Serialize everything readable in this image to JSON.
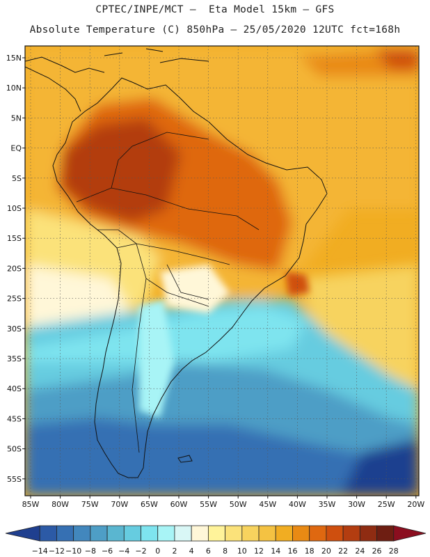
{
  "header": {
    "line1": "CPTEC/INPE/MCT –  Eta Model 15km – GFS",
    "line2": "Absolute Temperature (C) 850hPa – 25/05/2020 12UTC fct=168h"
  },
  "axes": {
    "lat_labels": [
      "15N",
      "10N",
      "5N",
      "EQ",
      "5S",
      "10S",
      "15S",
      "20S",
      "25S",
      "30S",
      "35S",
      "40S",
      "45S",
      "50S",
      "55S"
    ],
    "lon_labels": [
      "85W",
      "80W",
      "75W",
      "70W",
      "65W",
      "60W",
      "55W",
      "50W",
      "45W",
      "40W",
      "35W",
      "30W",
      "25W",
      "20W"
    ]
  },
  "colorbar": {
    "labels": [
      "-14",
      "-12",
      "-10",
      "-8",
      "-6",
      "-4",
      "-2",
      "0",
      "2",
      "4",
      "6",
      "8",
      "10",
      "12",
      "14",
      "16",
      "18",
      "20",
      "22",
      "24",
      "26",
      "28"
    ],
    "colors": [
      "#1f3f8f",
      "#2c5aa6",
      "#3670b3",
      "#4287bd",
      "#4e9ec6",
      "#5ab6d0",
      "#66cce0",
      "#7ee4ef",
      "#a8f4f6",
      "#d9f7f6",
      "#fff7d8",
      "#fff39a",
      "#fbe27a",
      "#f7d35e",
      "#f4c242",
      "#f1ad22",
      "#e98a14",
      "#df6810",
      "#cf4f0e",
      "#b33d10",
      "#8f2c12",
      "#6e1e12",
      "#8b0e1f"
    ]
  },
  "chart_data": {
    "type": "heatmap",
    "title": "Absolute Temperature (C) 850hPa",
    "source": "CPTEC/INPE/MCT – Eta Model 15km – GFS",
    "valid": "25/05/2020 12UTC fct=168h",
    "variable": "temperature_850hPa_C",
    "x_range_deg": [
      -85,
      -20
    ],
    "y_range_deg": [
      -58,
      17
    ],
    "levels": [
      -14,
      -12,
      -10,
      -8,
      -6,
      -4,
      -2,
      0,
      2,
      4,
      6,
      8,
      10,
      12,
      14,
      16,
      18,
      20,
      22,
      24,
      26,
      28
    ]
  }
}
